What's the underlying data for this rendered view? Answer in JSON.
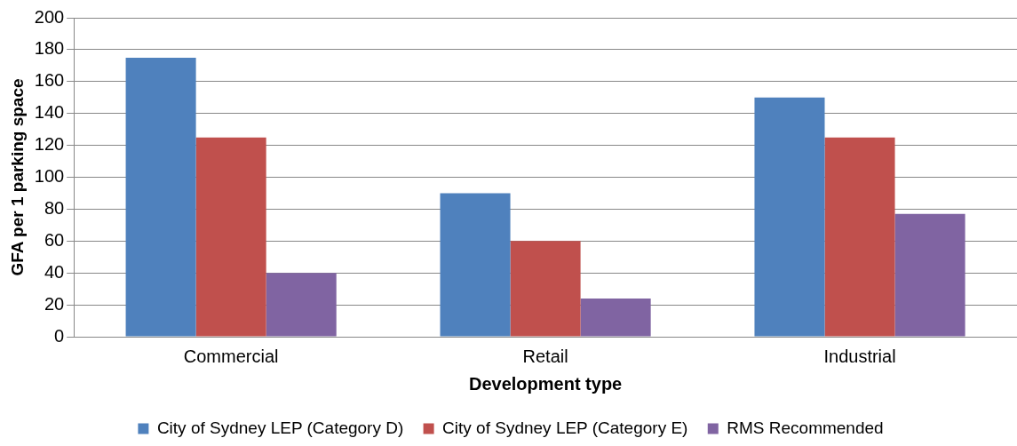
{
  "chart_data": {
    "type": "bar",
    "xlabel": "Development type",
    "ylabel": "GFA per 1 parking space",
    "categories": [
      "Commercial",
      "Retail",
      "Industrial"
    ],
    "series": [
      {
        "name": "City of Sydney LEP (Category D)",
        "color": "#4f81bd",
        "values": [
          175,
          90,
          150
        ]
      },
      {
        "name": "City of Sydney LEP (Category E)",
        "color": "#c0504d",
        "values": [
          125,
          60,
          125
        ]
      },
      {
        "name": "RMS Recommended",
        "color": "#8064a2",
        "values": [
          40,
          24,
          77
        ]
      }
    ],
    "ylim": [
      0,
      200
    ],
    "yticks": [
      0,
      20,
      40,
      60,
      80,
      100,
      120,
      140,
      160,
      180,
      200
    ],
    "grid": "y",
    "legend": "bottom"
  }
}
